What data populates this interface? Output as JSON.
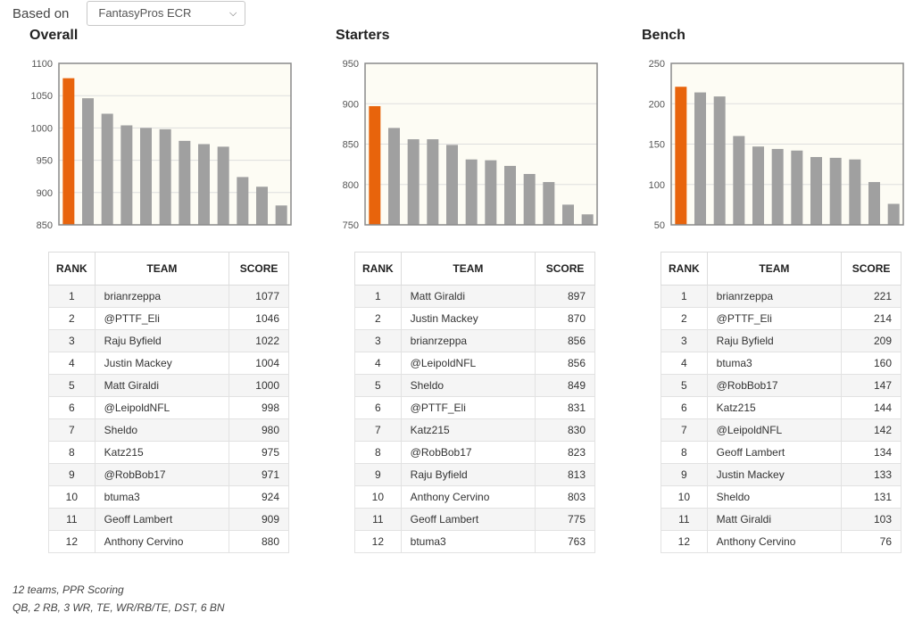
{
  "header": {
    "based_on_label": "Based on",
    "based_on_value": "FantasyPros ECR"
  },
  "table_headers": {
    "rank": "RANK",
    "team": "TEAM",
    "score": "SCORE"
  },
  "colors": {
    "highlight": "#e8640c",
    "bar": "#a0a0a0",
    "plot_bg": "#fdfcf4"
  },
  "chart_data": [
    {
      "type": "bar",
      "title": "Overall",
      "ylim": [
        850,
        1100
      ],
      "yticks": [
        850,
        900,
        950,
        1000,
        1050,
        1100
      ],
      "teams": [
        "brianrzeppa",
        "@PTTF_Eli",
        "Raju Byfield",
        "Justin Mackey",
        "Matt Giraldi",
        "@LeipoldNFL",
        "Sheldo",
        "Katz215",
        "@RobBob17",
        "btuma3",
        "Geoff Lambert",
        "Anthony Cervino"
      ],
      "values": [
        1077,
        1046,
        1022,
        1004,
        1000,
        998,
        980,
        975,
        971,
        924,
        909,
        880
      ]
    },
    {
      "type": "bar",
      "title": "Starters",
      "ylim": [
        750,
        950
      ],
      "yticks": [
        750,
        800,
        850,
        900,
        950
      ],
      "teams": [
        "Matt Giraldi",
        "Justin Mackey",
        "brianrzeppa",
        "@LeipoldNFL",
        "Sheldo",
        "@PTTF_Eli",
        "Katz215",
        "@RobBob17",
        "Raju Byfield",
        "Anthony Cervino",
        "Geoff Lambert",
        "btuma3"
      ],
      "values": [
        897,
        870,
        856,
        856,
        849,
        831,
        830,
        823,
        813,
        803,
        775,
        763
      ]
    },
    {
      "type": "bar",
      "title": "Bench",
      "ylim": [
        50,
        250
      ],
      "yticks": [
        50,
        100,
        150,
        200,
        250
      ],
      "teams": [
        "brianrzeppa",
        "@PTTF_Eli",
        "Raju Byfield",
        "btuma3",
        "@RobBob17",
        "Katz215",
        "@LeipoldNFL",
        "Geoff Lambert",
        "Justin Mackey",
        "Sheldo",
        "Matt Giraldi",
        "Anthony Cervino"
      ],
      "values": [
        221,
        214,
        209,
        160,
        147,
        144,
        142,
        134,
        133,
        131,
        103,
        76
      ]
    }
  ],
  "footer": {
    "line1": "12 teams, PPR Scoring",
    "line2": "QB, 2 RB, 3 WR, TE, WR/RB/TE, DST, 6 BN"
  }
}
